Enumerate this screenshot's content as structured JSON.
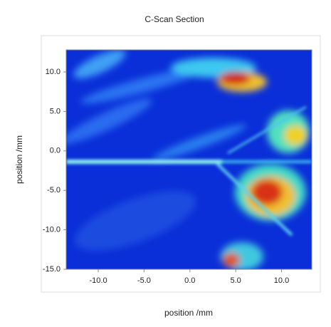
{
  "chart_data": {
    "type": "image",
    "title": "C-Scan Section",
    "x_label": "position /mm",
    "y_label": "position /mm",
    "xlim": [
      -13.5,
      13.3
    ],
    "ylim": [
      -15,
      12.8
    ],
    "xticks": [
      {
        "value": -10,
        "label": "-10.0"
      },
      {
        "value": -5,
        "label": "-5.0"
      },
      {
        "value": 0,
        "label": "0.0"
      },
      {
        "value": 5,
        "label": "5.0"
      },
      {
        "value": 10,
        "label": "10.0"
      }
    ],
    "yticks": [
      {
        "value": -15,
        "label": "-15.0"
      },
      {
        "value": -10,
        "label": "-10.0"
      },
      {
        "value": -5,
        "label": "-5.0"
      },
      {
        "value": 0,
        "label": "0.0"
      },
      {
        "value": 5,
        "label": "5.0"
      },
      {
        "value": 10,
        "label": "10.0"
      }
    ]
  }
}
